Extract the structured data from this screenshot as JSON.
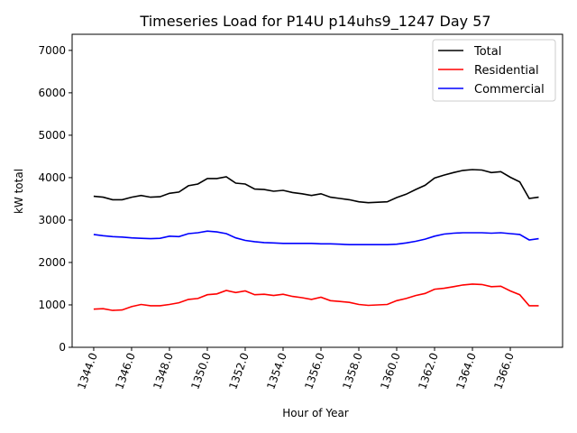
{
  "chart_data": {
    "type": "line",
    "title": "Timeseries Load for P14U p14uhs9_1247  Day 57",
    "xlabel": "Hour of Year",
    "ylabel": "kW total",
    "xlim": [
      1342.86,
      1368.76
    ],
    "ylim": [
      0,
      7380
    ],
    "xticks": [
      1344,
      1346,
      1348,
      1350,
      1352,
      1354,
      1356,
      1358,
      1360,
      1362,
      1364,
      1366
    ],
    "xtick_labels": [
      "1344.0",
      "1346.0",
      "1348.0",
      "1350.0",
      "1352.0",
      "1354.0",
      "1356.0",
      "1358.0",
      "1360.0",
      "1362.0",
      "1364.0",
      "1366.0"
    ],
    "yticks": [
      0,
      1000,
      2000,
      3000,
      4000,
      5000,
      6000,
      7000
    ],
    "ytick_labels": [
      "0",
      "1000",
      "2000",
      "3000",
      "4000",
      "5000",
      "6000",
      "7000"
    ],
    "legend_position": "top-right",
    "x_start": 1344,
    "x_step": 0.5,
    "series": [
      {
        "name": "Total",
        "color": "#000000",
        "values": [
          3560,
          3540,
          3480,
          3480,
          3540,
          3580,
          3540,
          3550,
          3630,
          3660,
          3810,
          3850,
          3980,
          3980,
          4020,
          3870,
          3850,
          3730,
          3720,
          3680,
          3700,
          3650,
          3620,
          3580,
          3620,
          3540,
          3510,
          3480,
          3430,
          3410,
          3420,
          3430,
          3530,
          3610,
          3720,
          3820,
          3990,
          4060,
          4120,
          4170,
          4190,
          4180,
          4120,
          4140,
          4010,
          3900,
          3510,
          3540
        ]
      },
      {
        "name": "Residential",
        "color": "#ff0000",
        "values": [
          900,
          910,
          870,
          880,
          960,
          1010,
          980,
          980,
          1010,
          1050,
          1130,
          1150,
          1240,
          1260,
          1340,
          1290,
          1330,
          1240,
          1250,
          1220,
          1250,
          1200,
          1170,
          1130,
          1180,
          1100,
          1080,
          1060,
          1010,
          990,
          1000,
          1010,
          1100,
          1150,
          1220,
          1270,
          1370,
          1390,
          1430,
          1470,
          1490,
          1480,
          1430,
          1440,
          1330,
          1240,
          980,
          980
        ]
      },
      {
        "name": "Commercial",
        "color": "#0000ff",
        "values": [
          2660,
          2630,
          2610,
          2600,
          2580,
          2570,
          2560,
          2570,
          2620,
          2610,
          2680,
          2700,
          2740,
          2720,
          2680,
          2580,
          2520,
          2490,
          2470,
          2460,
          2450,
          2450,
          2450,
          2450,
          2440,
          2440,
          2430,
          2420,
          2420,
          2420,
          2420,
          2420,
          2430,
          2460,
          2500,
          2550,
          2620,
          2670,
          2690,
          2700,
          2700,
          2700,
          2690,
          2700,
          2680,
          2660,
          2530,
          2560
        ]
      }
    ]
  }
}
